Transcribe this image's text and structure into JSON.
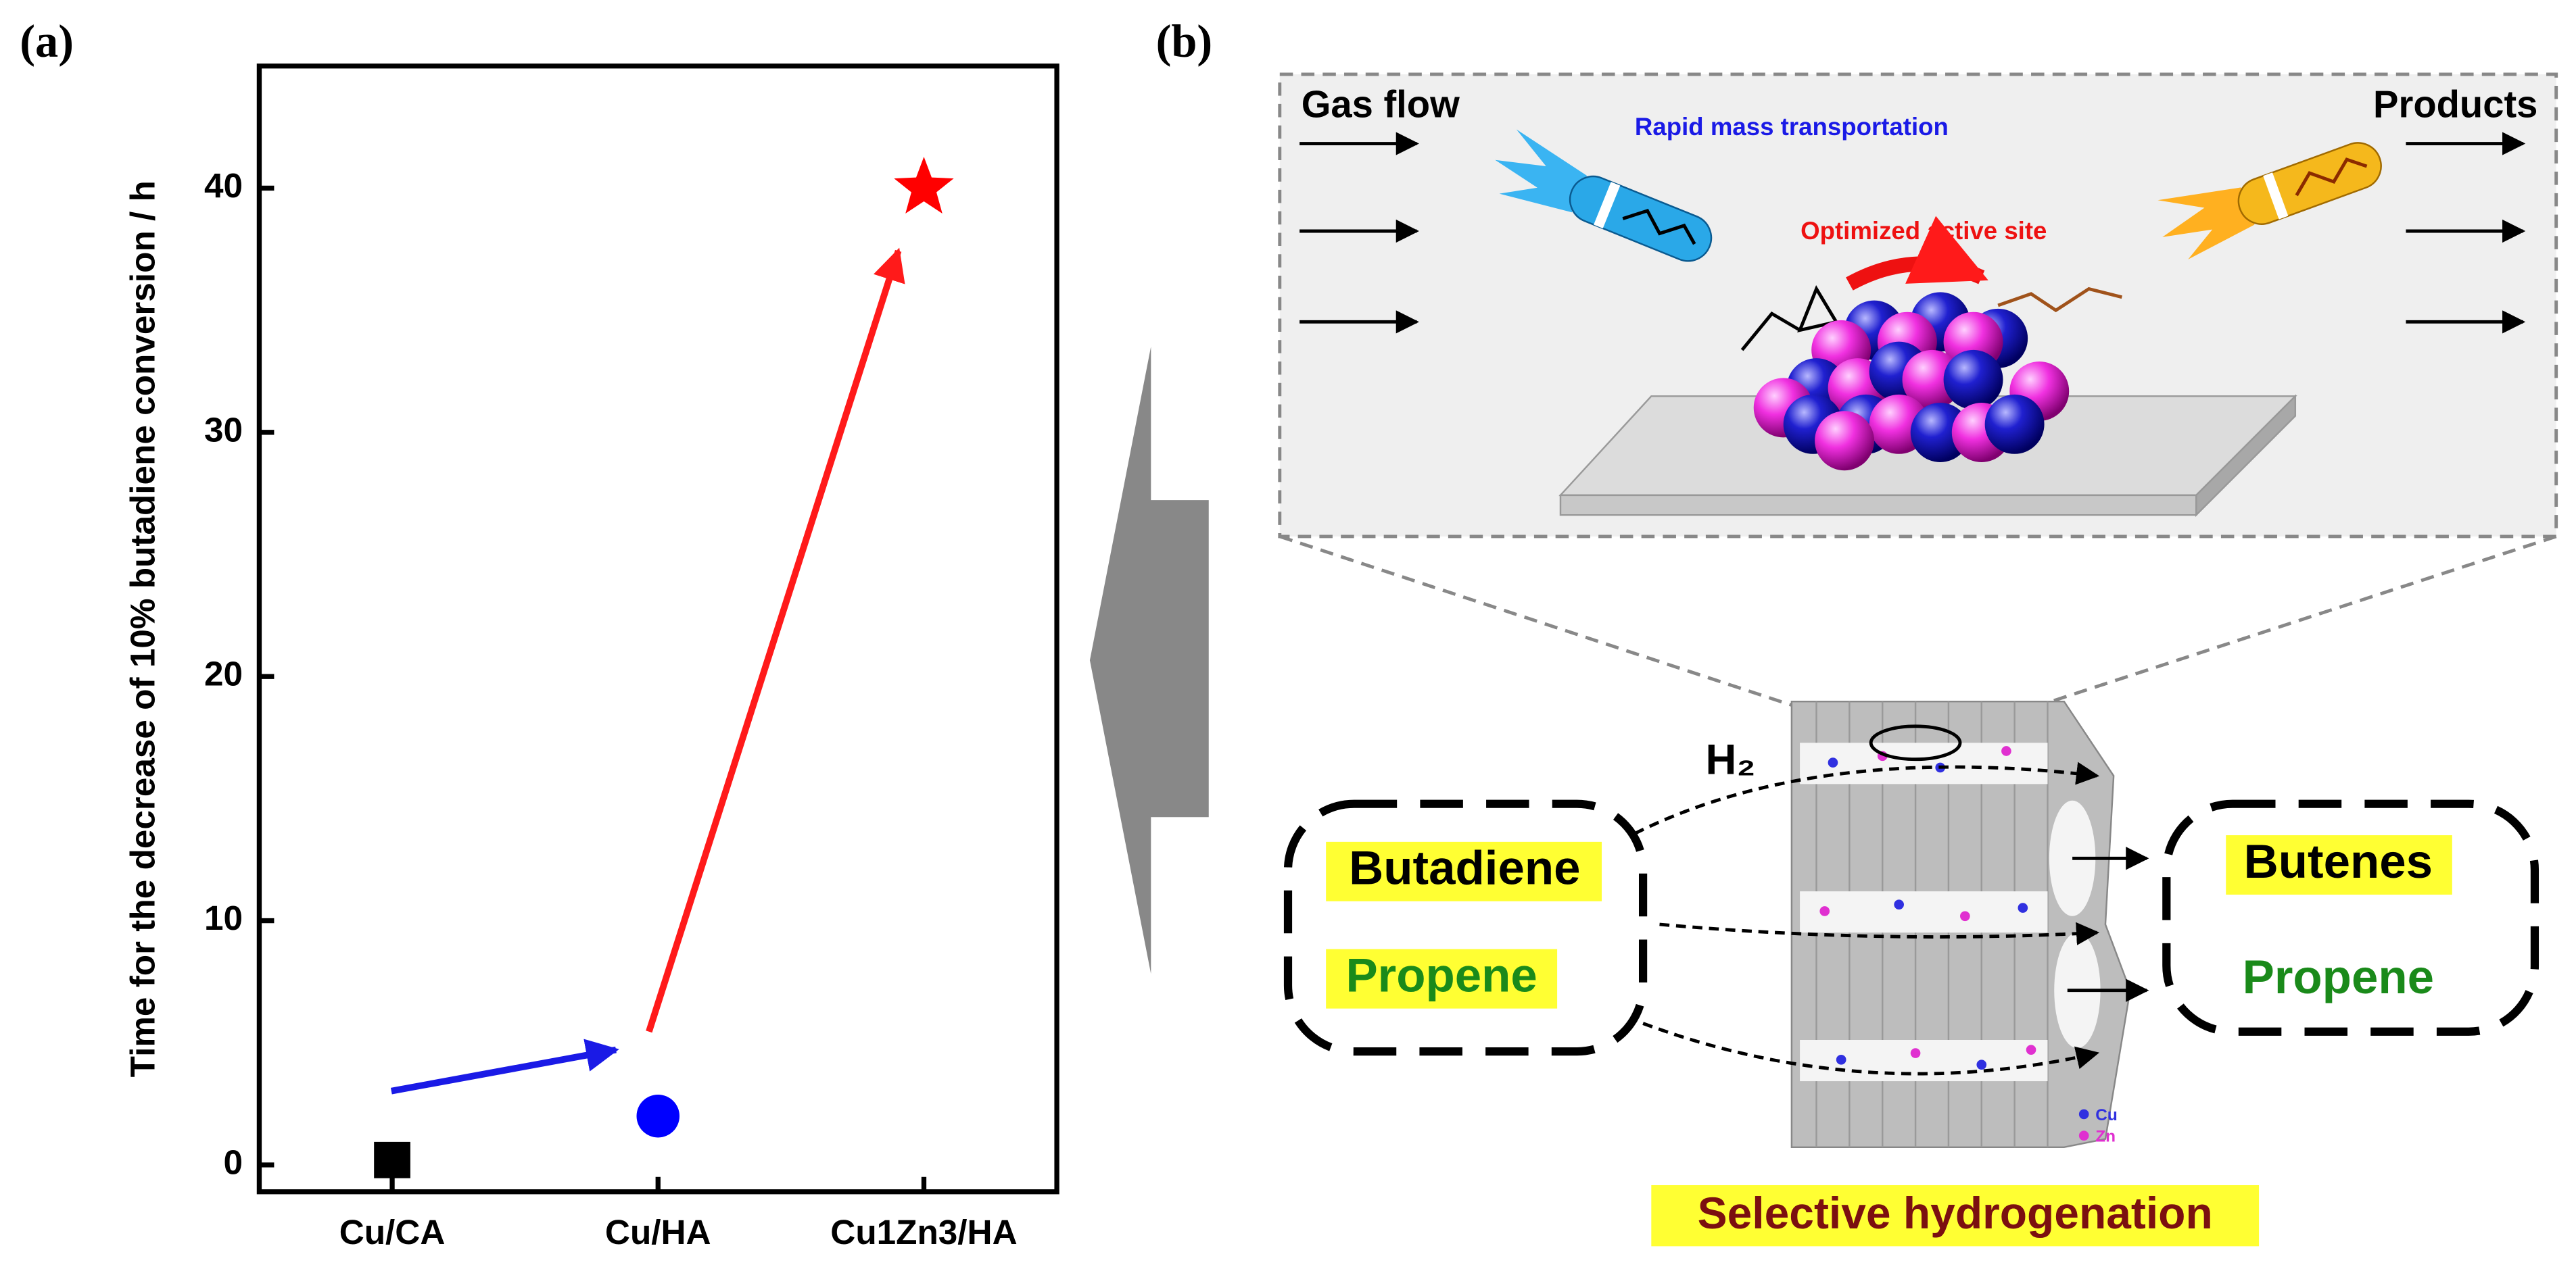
{
  "chart_data": {
    "type": "scatter",
    "panel": "(a)",
    "ylabel": "Time for the decrease of 10% butadiene conversion / h",
    "categories": [
      "Cu/CA",
      "Cu/HA",
      "Cu1Zn3/HA"
    ],
    "values": [
      0.2,
      2,
      40
    ],
    "colors": [
      "#000000",
      "#0000ff",
      "#ff0000"
    ],
    "markers": [
      "square",
      "circle",
      "star"
    ],
    "ylim": [
      -1.1,
      45
    ],
    "yticks": [
      0,
      10,
      20,
      30,
      40
    ]
  },
  "panel_b": {
    "label": "(b)",
    "gas_flow": "Gas flow",
    "products": "Products",
    "rapid": "Rapid mass transportation",
    "optimized": "Optimized active site",
    "h2": "H₂",
    "feed": [
      "Butadiene",
      "Propene"
    ],
    "output": [
      "Butenes",
      "Propene"
    ],
    "legend": [
      "Cu",
      "Zn"
    ],
    "caption": "Selective hydrogenation"
  }
}
